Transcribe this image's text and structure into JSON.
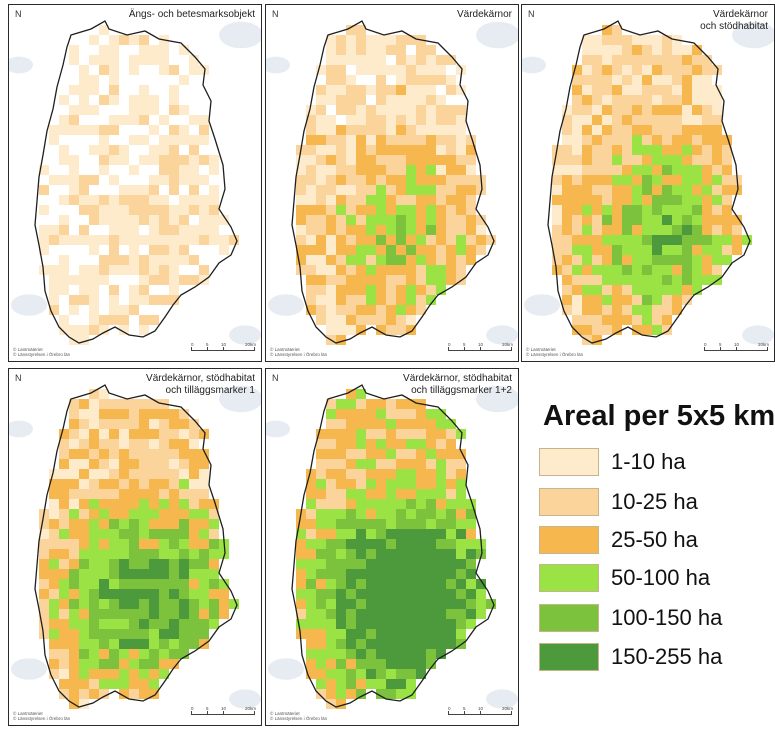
{
  "colors": {
    "c1": "#fdebcc",
    "c2": "#fbd49c",
    "c3": "#f6b84e",
    "c4": "#9be244",
    "c5": "#7cc23c",
    "c6": "#4c9a3c",
    "water": "#e6ecf2"
  },
  "panels": [
    {
      "title": "Ängs- och betesmarksobjekt",
      "credit": "© Lantmäteriet\n© Länsstyrelsen i Örebro län",
      "scale": {
        "zero": "0",
        "mid": "5",
        "max": "10",
        "end": "20km"
      }
    },
    {
      "title": "Värdekärnor",
      "credit": "© Lantmäteriet\n© Länsstyrelsen i Örebro län",
      "scale": {
        "zero": "0",
        "mid": "5",
        "max": "10",
        "end": "20km"
      }
    },
    {
      "title": "Värdekärnor\noch stödhabitat",
      "credit": "© Lantmäteriet\n© Länsstyrelsen i Örebro län",
      "scale": {
        "zero": "0",
        "mid": "5",
        "max": "10",
        "end": "20km"
      }
    },
    {
      "title": "Värdekärnor, stödhabitat\noch tilläggsmarker 1",
      "credit": "© Lantmäteriet\n© Länsstyrelsen i Örebro län",
      "scale": {
        "zero": "0",
        "mid": "5",
        "max": "10",
        "end": "20km"
      }
    },
    {
      "title": "Värdekärnor, stödhabitat\noch tilläggsmarker 1+2",
      "credit": "© Lantmäteriet\n© Länsstyrelsen i Örebro län",
      "scale": {
        "zero": "0",
        "mid": "5",
        "max": "10",
        "end": "20km"
      }
    }
  ],
  "legend": {
    "title": "Areal per 5x5 km",
    "classes": [
      {
        "label": "1-10 ha",
        "color": "#fdebcc"
      },
      {
        "label": "10-25 ha",
        "color": "#fbd49c"
      },
      {
        "label": "25-50 ha",
        "color": "#f6b84e"
      },
      {
        "label": "50-100 ha",
        "color": "#9be244"
      },
      {
        "label": "100-150 ha",
        "color": "#7cc23c"
      },
      {
        "label": "150-255 ha",
        "color": "#4c9a3c"
      }
    ]
  },
  "north_arrow": "N"
}
